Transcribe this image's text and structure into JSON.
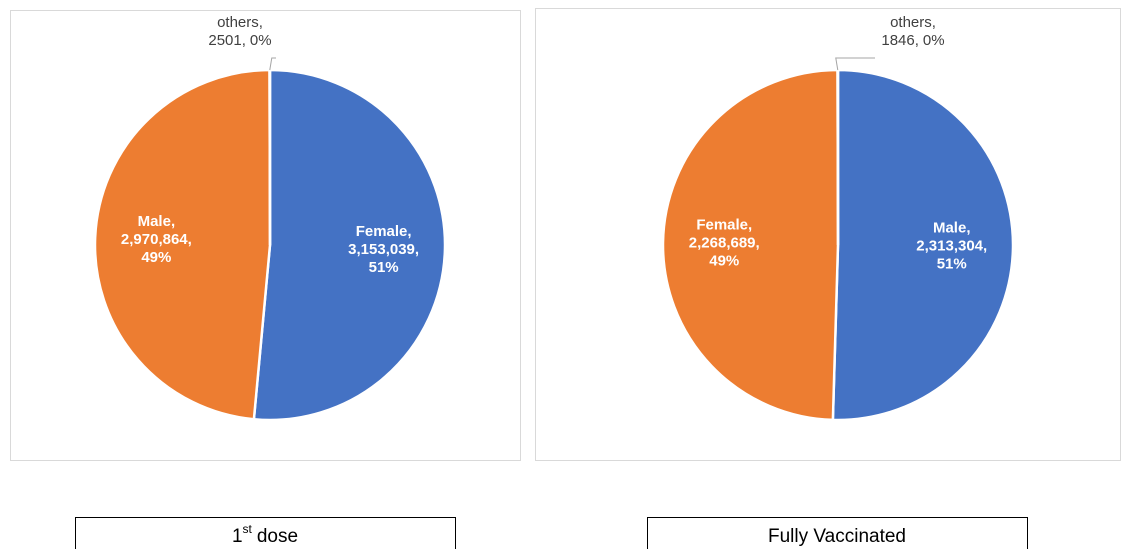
{
  "chart_data": [
    {
      "type": "pie",
      "categories": [
        "Female,",
        "Male,",
        "others,"
      ],
      "values": [
        3153039,
        2970864,
        2501
      ],
      "value_labels": [
        "3,153,039,",
        "2,970,864,",
        "2501,"
      ],
      "percents": [
        51,
        49,
        0
      ],
      "percent_labels": [
        "51%",
        "49%",
        "0%"
      ],
      "colors": [
        "#4472c4",
        "#ed7d31",
        "#a5a5a5"
      ],
      "caption": [
        "1",
        "st",
        "dose"
      ]
    },
    {
      "type": "pie",
      "categories": [
        "Male,",
        "Female,",
        "others,"
      ],
      "values": [
        2313304,
        2268689,
        1846
      ],
      "value_labels": [
        "2,313,304,",
        "2,268,689,",
        "1846,"
      ],
      "percents": [
        51,
        49,
        0
      ],
      "percent_labels": [
        "51%",
        "49%",
        "0%"
      ],
      "colors": [
        "#4472c4",
        "#ed7d31",
        "#a5a5a5"
      ],
      "caption": [
        "Fully Vaccinated"
      ]
    }
  ]
}
